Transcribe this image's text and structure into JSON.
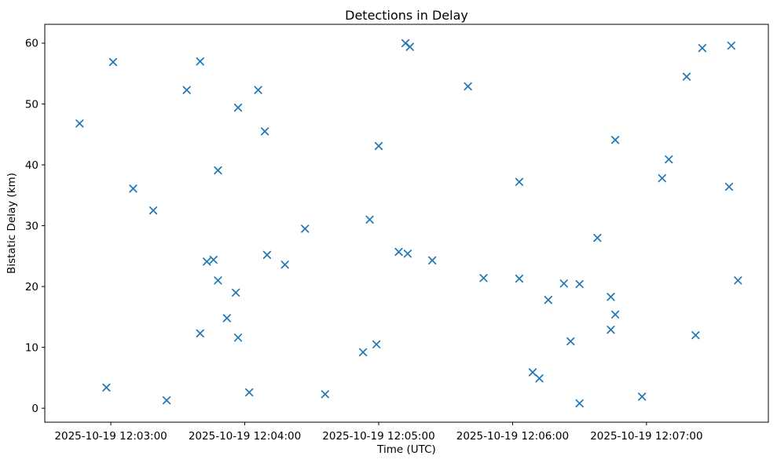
{
  "chart_data": {
    "type": "scatter",
    "title": "Detections in Delay",
    "xlabel": "Time (UTC)",
    "ylabel": "Bistatic Delay (km)",
    "marker": "x",
    "marker_color": "#1f77b4",
    "grid": false,
    "legend": null,
    "x_unit": "seconds after 2025-10-19 12:03:00 UTC",
    "x_tick_labels": [
      "2025-10-19 12:03:00",
      "2025-10-19 12:04:00",
      "2025-10-19 12:05:00",
      "2025-10-19 12:06:00",
      "2025-10-19 12:07:00"
    ],
    "x_tick_seconds": [
      0,
      60,
      120,
      180,
      240
    ],
    "y_ticks": [
      0,
      10,
      20,
      30,
      40,
      50,
      60
    ],
    "xlim_seconds": [
      -29.6,
      294.6
    ],
    "ylim": [
      -2.3,
      63.1
    ],
    "points": [
      [
        1,
        56.9
      ],
      [
        40,
        57.0
      ],
      [
        34,
        52.3
      ],
      [
        66,
        52.3
      ],
      [
        57,
        49.4
      ],
      [
        -14,
        46.8
      ],
      [
        69,
        45.5
      ],
      [
        48,
        39.1
      ],
      [
        10,
        36.1
      ],
      [
        19,
        32.5
      ],
      [
        132,
        60.0
      ],
      [
        134,
        59.4
      ],
      [
        160,
        52.9
      ],
      [
        120,
        43.1
      ],
      [
        183,
        37.2
      ],
      [
        116,
        31.0
      ],
      [
        87,
        29.5
      ],
      [
        265,
        59.2
      ],
      [
        278,
        59.6
      ],
      [
        258,
        54.5
      ],
      [
        226,
        44.1
      ],
      [
        250,
        40.9
      ],
      [
        247,
        37.8
      ],
      [
        277,
        36.4
      ],
      [
        43,
        24.1
      ],
      [
        46,
        24.4
      ],
      [
        70,
        25.2
      ],
      [
        78,
        23.6
      ],
      [
        48,
        21.0
      ],
      [
        56,
        19.0
      ],
      [
        52,
        14.8
      ],
      [
        40,
        12.3
      ],
      [
        57,
        11.6
      ],
      [
        -2,
        3.4
      ],
      [
        25,
        1.3
      ],
      [
        62,
        2.6
      ],
      [
        129,
        25.7
      ],
      [
        133,
        25.4
      ],
      [
        144,
        24.3
      ],
      [
        167,
        21.4
      ],
      [
        183,
        21.3
      ],
      [
        119,
        10.5
      ],
      [
        113,
        9.2
      ],
      [
        96,
        2.3
      ],
      [
        218,
        28.0
      ],
      [
        203,
        20.5
      ],
      [
        210,
        20.4
      ],
      [
        281,
        21.0
      ],
      [
        196,
        17.8
      ],
      [
        224,
        18.3
      ],
      [
        226,
        15.4
      ],
      [
        224,
        12.9
      ],
      [
        206,
        11.0
      ],
      [
        262,
        12.0
      ],
      [
        189,
        5.9
      ],
      [
        192,
        4.9
      ],
      [
        238,
        1.9
      ],
      [
        210,
        0.8
      ]
    ]
  }
}
